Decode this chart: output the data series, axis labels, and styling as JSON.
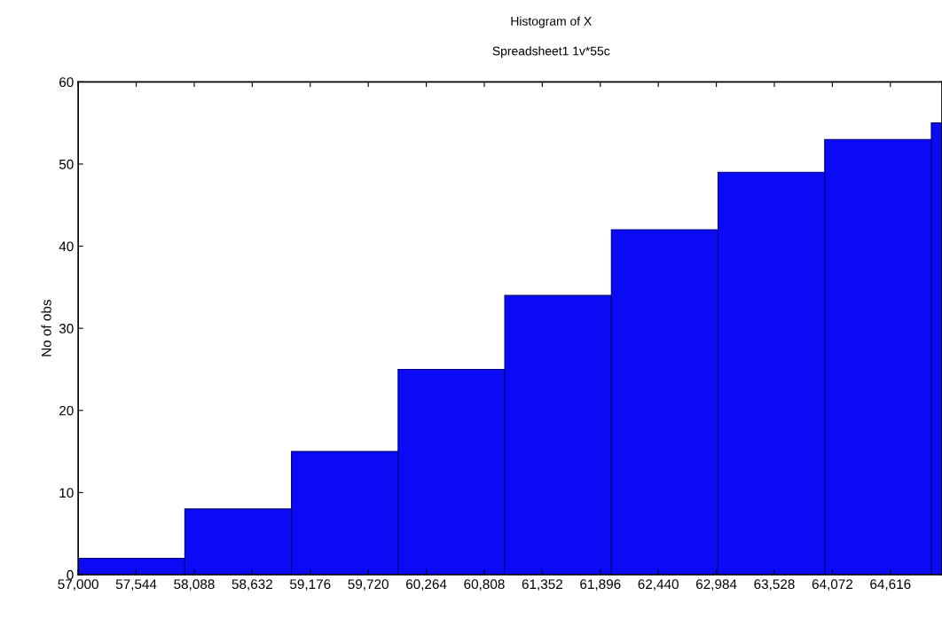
{
  "chart_data": {
    "type": "histogram",
    "title": "Histogram of X",
    "subtitle": "Spreadsheet1 1v*55c",
    "ylabel": "No of obs",
    "bins": [
      57000,
      58000,
      59000,
      60000,
      61000,
      62000,
      63000,
      64000,
      65000,
      66000
    ],
    "values": [
      2,
      8,
      15,
      25,
      34,
      42,
      49,
      53,
      55
    ],
    "color": "#0a0af5",
    "xlim": [
      57000,
      65100
    ],
    "xticks": [
      {
        "value": 57000,
        "label": "57,000"
      },
      {
        "value": 57544,
        "label": "57,544"
      },
      {
        "value": 58088,
        "label": "58,088"
      },
      {
        "value": 58632,
        "label": "58,632"
      },
      {
        "value": 59176,
        "label": "59,176"
      },
      {
        "value": 59720,
        "label": "59,720"
      },
      {
        "value": 60264,
        "label": "60,264"
      },
      {
        "value": 60808,
        "label": "60,808"
      },
      {
        "value": 61352,
        "label": "61,352"
      },
      {
        "value": 61896,
        "label": "61,896"
      },
      {
        "value": 62440,
        "label": "62,440"
      },
      {
        "value": 62984,
        "label": "62,984"
      },
      {
        "value": 63528,
        "label": "63,528"
      },
      {
        "value": 64072,
        "label": "64,072"
      },
      {
        "value": 64616,
        "label": "64,616"
      }
    ],
    "ylim": [
      0,
      60
    ],
    "yticks": [
      0,
      10,
      20,
      30,
      40,
      50,
      60
    ],
    "grid": false
  }
}
